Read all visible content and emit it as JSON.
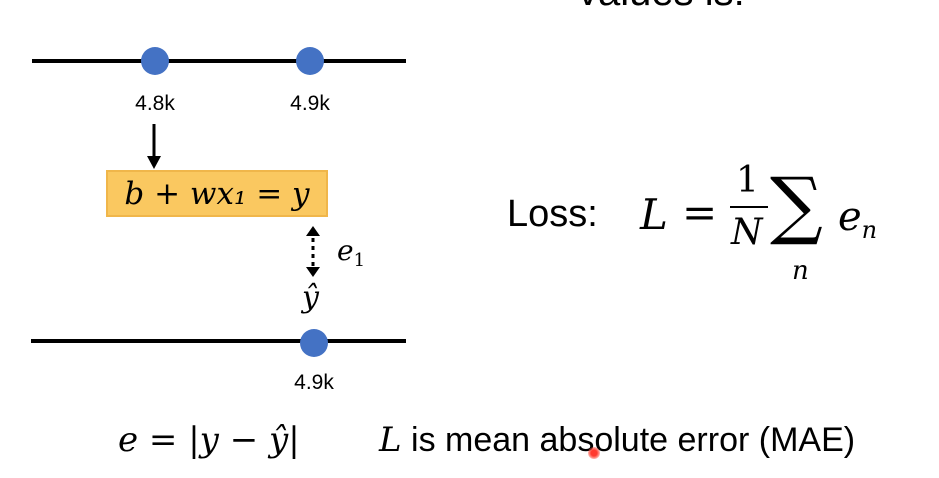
{
  "slide": {
    "top_text": "values is:",
    "top_axis": {
      "labels": [
        "4.8k",
        "4.9k"
      ]
    },
    "model_formula": "b + wx₁ = y",
    "error_label": "e",
    "error_subscript": "1",
    "yhat_label": "ŷ",
    "bottom_axis": {
      "labels": [
        "4.9k"
      ]
    },
    "loss_word": "Loss:",
    "loss_formula": {
      "lhs": "L",
      "equals": "=",
      "numerator": "1",
      "denominator": "N",
      "sum_symbol": "∑",
      "sum_index": "n",
      "term": "e",
      "term_subscript": "n"
    },
    "error_definition": "e = |y − ŷ|",
    "mae_prefix": "L",
    "mae_text": " is mean absolute error (MAE)"
  },
  "colors": {
    "point": "#4472c4",
    "formula_box": "#fac860",
    "laser_pointer": "#ff3b2f"
  }
}
